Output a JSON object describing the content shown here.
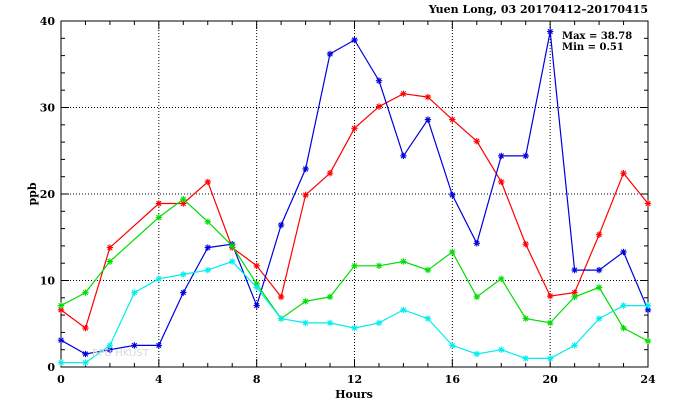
{
  "chart_data": {
    "type": "line",
    "title": "Yuen Long, 03 20170412–20170415",
    "xlabel": "Hours",
    "ylabel": "ppb",
    "xlim": [
      0,
      24
    ],
    "ylim": [
      0,
      40
    ],
    "xticks": [
      0,
      4,
      8,
      12,
      16,
      20,
      24
    ],
    "yticks": [
      0,
      10,
      20,
      30,
      40
    ],
    "grid": "dotted, at major ticks",
    "stats": {
      "max_label": "Max = 38.78",
      "min_label": "Min =   0.51"
    },
    "watermark": "EPD HKUST",
    "x": [
      0,
      1,
      2,
      3,
      4,
      5,
      6,
      7,
      8,
      9,
      10,
      11,
      12,
      13,
      14,
      15,
      16,
      17,
      18,
      19,
      20,
      21,
      22,
      23,
      24
    ],
    "series": [
      {
        "color": "#ff0000",
        "values": [
          6.6,
          4.5,
          13.8,
          null,
          18.9,
          18.9,
          21.4,
          13.8,
          11.7,
          8.1,
          19.9,
          22.4,
          27.6,
          30.1,
          31.6,
          31.2,
          28.6,
          26.1,
          21.4,
          14.2,
          8.2,
          8.6,
          15.3,
          22.4,
          18.9
        ]
      },
      {
        "color": "#0000dd",
        "values": [
          3.1,
          1.5,
          2.0,
          2.5,
          2.5,
          8.6,
          13.8,
          14.2,
          7.1,
          16.4,
          22.9,
          36.2,
          37.8,
          33.1,
          24.4,
          28.6,
          19.9,
          14.3,
          24.4,
          24.4,
          38.78,
          11.2,
          11.2,
          13.3,
          6.6
        ]
      },
      {
        "color": "#00dd00",
        "values": [
          7.1,
          8.6,
          12.2,
          null,
          17.3,
          19.4,
          16.8,
          14.0,
          9.6,
          5.6,
          7.6,
          8.1,
          11.7,
          11.7,
          12.2,
          11.2,
          13.3,
          8.1,
          10.2,
          5.6,
          5.1,
          8.1,
          9.2,
          4.5,
          3.0
        ]
      },
      {
        "color": "#00eeee",
        "values": [
          0.51,
          0.51,
          2.5,
          8.6,
          10.2,
          10.7,
          11.2,
          12.2,
          9.2,
          5.6,
          5.1,
          5.1,
          4.5,
          5.1,
          6.6,
          5.6,
          2.5,
          1.5,
          2.0,
          1.0,
          1.0,
          2.5,
          5.6,
          7.1,
          7.1
        ]
      }
    ]
  }
}
